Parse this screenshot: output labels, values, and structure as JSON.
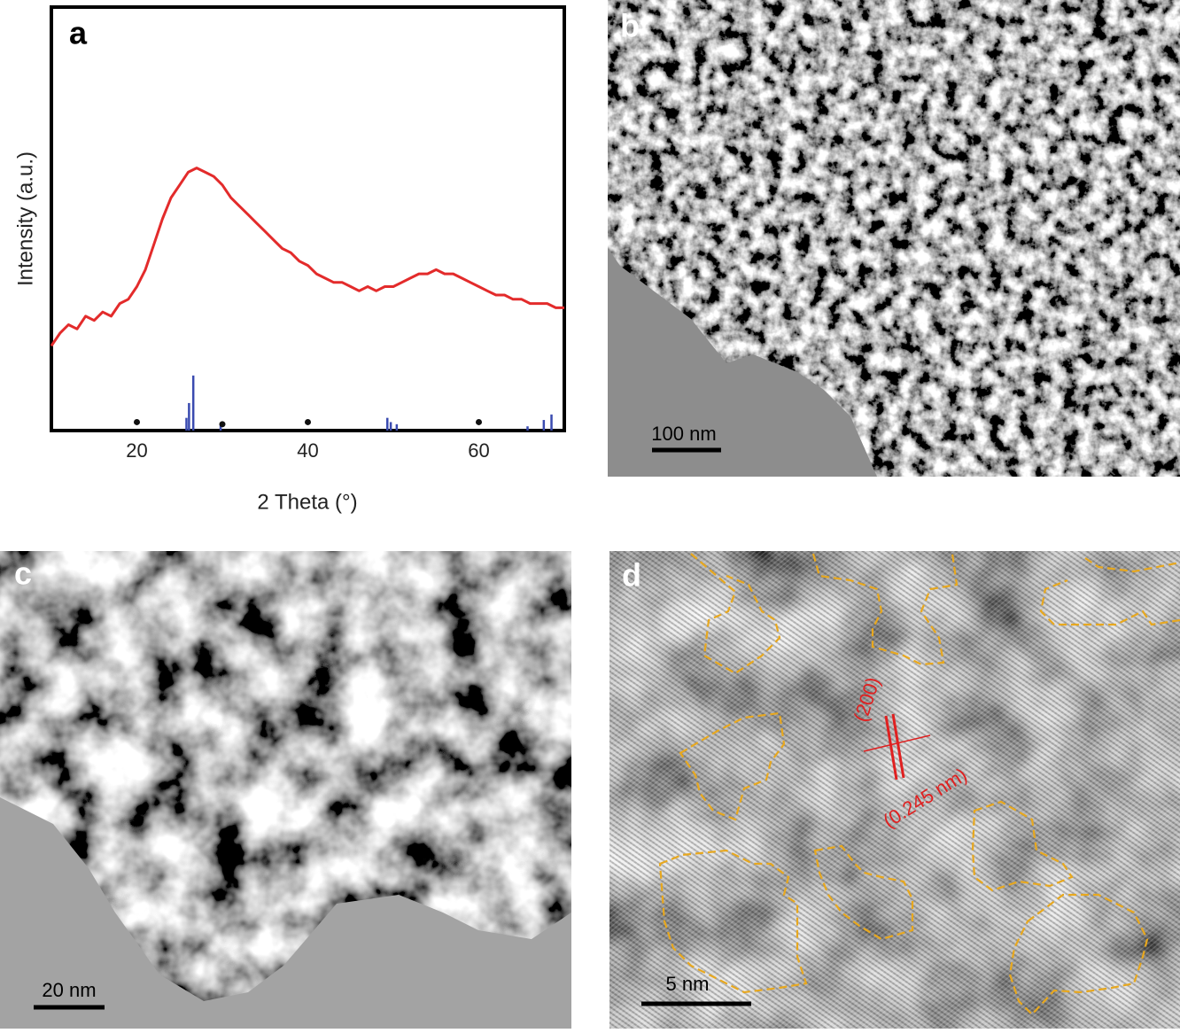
{
  "chart_data": {
    "type": "line",
    "xlabel": "2 Theta (°)",
    "ylabel": "Intensity (a.u.)",
    "xlim": [
      10,
      70
    ],
    "xticks": [
      20,
      40,
      60
    ],
    "ylim": [
      0,
      100
    ],
    "color": "#e32b2b",
    "x": [
      10,
      11,
      12,
      13,
      14,
      15,
      16,
      17,
      18,
      19,
      20,
      21,
      22,
      23,
      24,
      25,
      26,
      27,
      28,
      29,
      30,
      31,
      32,
      33,
      34,
      35,
      36,
      37,
      38,
      39,
      40,
      41,
      42,
      43,
      44,
      45,
      46,
      47,
      48,
      49,
      50,
      51,
      52,
      53,
      54,
      55,
      56,
      57,
      58,
      59,
      60,
      61,
      62,
      63,
      64,
      65,
      66,
      67,
      68,
      69,
      70
    ],
    "values": [
      20,
      23,
      25,
      24,
      27,
      26,
      28,
      27,
      30,
      31,
      34,
      38,
      44,
      50,
      55,
      58,
      61,
      62,
      61,
      60,
      58,
      55,
      53,
      51,
      49,
      47,
      45,
      43,
      42,
      40,
      39,
      37,
      36,
      35,
      35,
      34,
      33,
      34,
      33,
      34,
      34,
      35,
      36,
      37,
      37,
      38,
      37,
      37,
      36,
      35,
      34,
      33,
      32,
      32,
      31,
      31,
      30,
      30,
      30,
      29,
      29
    ],
    "reference_peaks": {
      "color": "#3a4bb0",
      "x": [
        25.8,
        26.1,
        26.6,
        29.8,
        49.3,
        49.7,
        50.4,
        65.7,
        67.6,
        68.5
      ],
      "values": [
        3,
        6.5,
        13,
        1.5,
        3,
        2,
        1.5,
        1,
        2.5,
        3.8
      ]
    },
    "markers": {
      "color": "#111111",
      "x": [
        20,
        30,
        40,
        60
      ],
      "values": [
        2,
        1.5,
        2,
        2
      ]
    }
  },
  "panel_labels": [
    "a",
    "b",
    "c",
    "d"
  ],
  "scale_bars": [
    "100 nm",
    "20 nm",
    "5 nm"
  ],
  "annotations": [
    "(200)",
    "(0.245 nm)"
  ]
}
